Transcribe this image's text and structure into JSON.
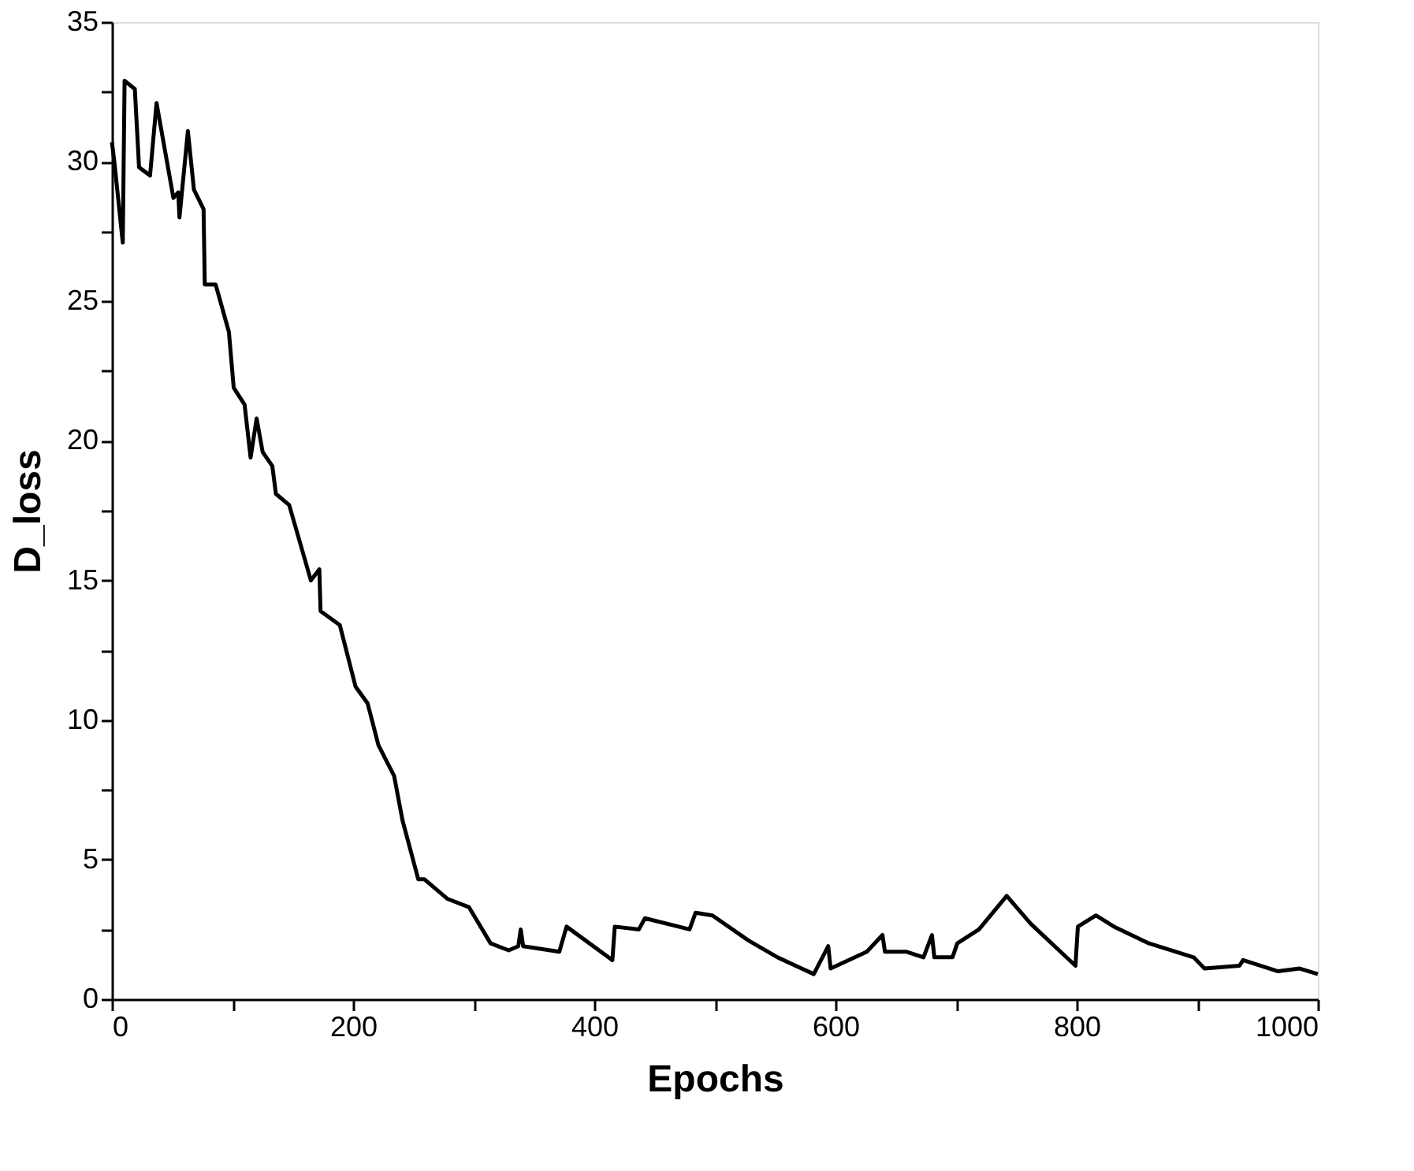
{
  "chart_data": {
    "type": "line",
    "xlabel": "Epochs",
    "ylabel": "D_loss",
    "xlim": [
      0,
      1000
    ],
    "ylim": [
      0,
      35
    ],
    "xticks": [
      0,
      {
        "value": 100,
        "label": null
      },
      200,
      {
        "value": 300,
        "label": null
      },
      400,
      {
        "value": 500,
        "label": null
      },
      600,
      {
        "value": 700,
        "label": null
      },
      800,
      {
        "value": 900,
        "label": null
      },
      1000
    ],
    "yticks": [
      0,
      {
        "value": 2.5,
        "label": null
      },
      5,
      {
        "value": 7.5,
        "label": null
      },
      10,
      {
        "value": 12.5,
        "label": null
      },
      15,
      {
        "value": 17.5,
        "label": null
      },
      20,
      {
        "value": 22.5,
        "label": null
      },
      25,
      {
        "value": 27.5,
        "label": null
      },
      30,
      {
        "value": 32.5,
        "label": null
      },
      35
    ],
    "grid": false,
    "legend": false,
    "marker": "none",
    "line_style": "solid",
    "x": [
      0,
      2,
      9,
      10.5,
      19,
      22.5,
      31.6,
      37,
      51,
      55,
      56,
      63,
      68,
      76,
      77,
      86,
      97,
      101,
      110,
      115,
      120,
      125,
      133,
      136,
      147,
      165,
      172,
      173,
      189,
      202,
      212,
      221,
      234,
      241,
      254,
      259,
      278,
      296,
      314,
      329,
      337,
      339,
      341,
      371,
      377,
      415,
      417,
      437,
      442,
      479,
      484,
      498,
      528,
      552,
      582,
      594,
      596,
      626,
      639,
      641,
      659,
      673,
      680,
      682,
      697,
      701,
      719,
      742,
      750,
      762,
      799,
      801,
      816,
      831,
      860,
      897,
      906,
      935,
      938,
      967,
      985,
      1000
    ],
    "series": [
      {
        "color": "#000000",
        "values": [
          30.7,
          30.0,
          27.1,
          32.9,
          32.6,
          29.8,
          29.5,
          32.1,
          28.7,
          28.9,
          28.0,
          31.1,
          29.0,
          28.3,
          25.6,
          25.6,
          23.9,
          21.9,
          21.3,
          19.4,
          20.8,
          19.6,
          19.1,
          18.1,
          17.7,
          15.0,
          15.4,
          13.9,
          13.4,
          11.2,
          10.6,
          9.1,
          8.0,
          6.4,
          4.3,
          4.3,
          3.6,
          3.3,
          2.0,
          1.75,
          1.9,
          2.5,
          1.9,
          1.7,
          2.6,
          1.4,
          2.6,
          2.5,
          2.9,
          2.5,
          3.1,
          3.0,
          2.1,
          1.5,
          0.9,
          1.9,
          1.1,
          1.7,
          2.3,
          1.7,
          1.7,
          1.5,
          2.3,
          1.5,
          1.5,
          2.0,
          2.5,
          3.7,
          3.3,
          2.7,
          1.2,
          2.6,
          3.0,
          2.6,
          2.0,
          1.5,
          1.1,
          1.2,
          1.4,
          1.0,
          1.1,
          0.9
        ]
      }
    ]
  }
}
